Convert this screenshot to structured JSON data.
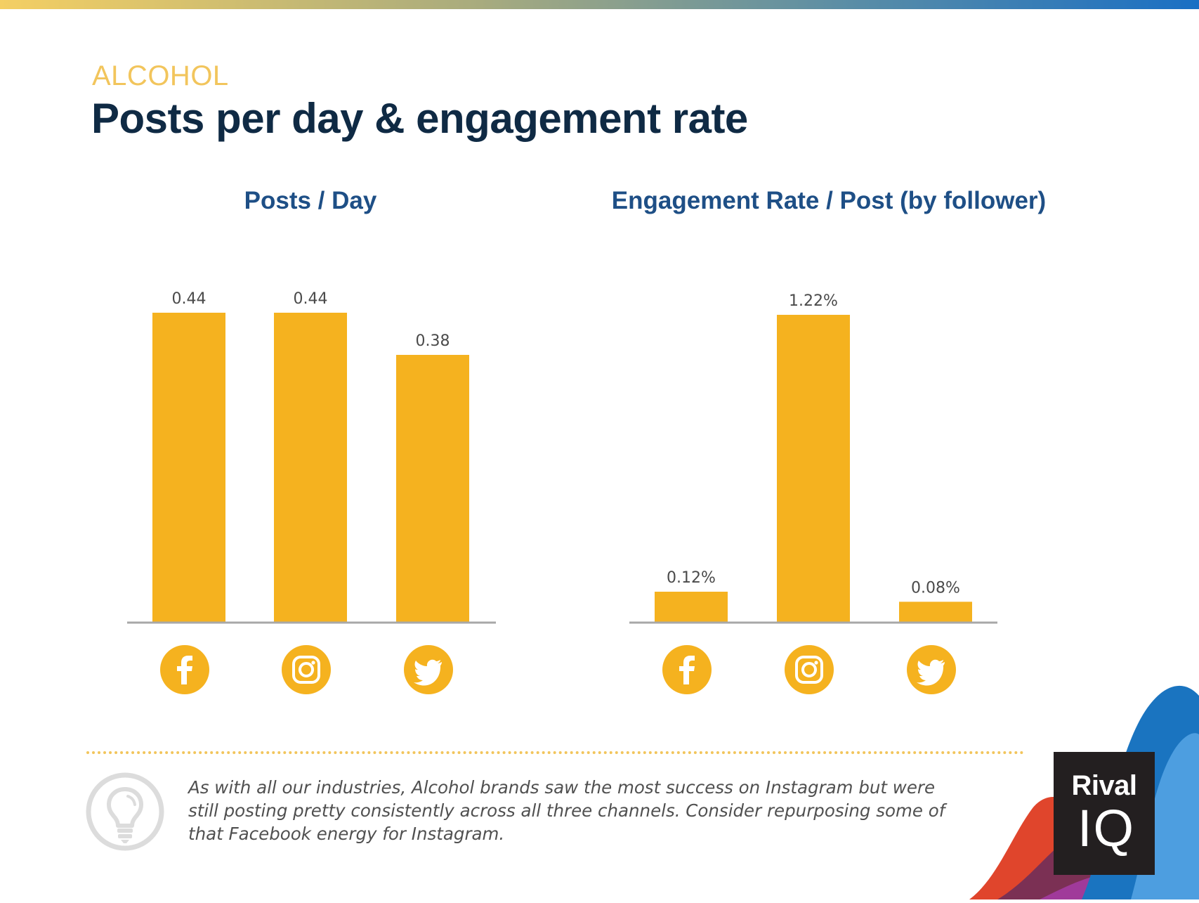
{
  "header": {
    "category": "ALCOHOL",
    "title": "Posts per day & engagement rate"
  },
  "colors": {
    "bar": "#f5b21f",
    "title": "#0f2a44",
    "chart_title": "#1e4f86",
    "category": "#f2c55c"
  },
  "chart_data": [
    {
      "type": "bar",
      "title": "Posts / Day",
      "categories": [
        "Facebook",
        "Instagram",
        "Twitter"
      ],
      "category_icons": [
        "facebook-icon",
        "instagram-icon",
        "twitter-icon"
      ],
      "values": [
        0.44,
        0.44,
        0.38
      ],
      "data_labels": [
        "0.44",
        "0.44",
        "0.38"
      ],
      "xlabel": "",
      "ylabel": "",
      "ylim": [
        0,
        0.44
      ],
      "grid": false
    },
    {
      "type": "bar",
      "title": "Engagement Rate / Post (by follower)",
      "categories": [
        "Facebook",
        "Instagram",
        "Twitter"
      ],
      "category_icons": [
        "facebook-icon",
        "instagram-icon",
        "twitter-icon"
      ],
      "values": [
        0.12,
        1.22,
        0.08
      ],
      "unit": "%",
      "data_labels": [
        "0.12%",
        "1.22%",
        "0.08%"
      ],
      "xlabel": "",
      "ylabel": "",
      "ylim": [
        0,
        1.22
      ],
      "grid": false
    }
  ],
  "insight": {
    "text": "As with all our industries, Alcohol brands saw the most success on Instagram but were still posting pretty consistently across all three channels. Consider repurposing some of that Facebook energy for Instagram."
  },
  "logo": {
    "line1": "Rival",
    "line2": "IQ"
  }
}
